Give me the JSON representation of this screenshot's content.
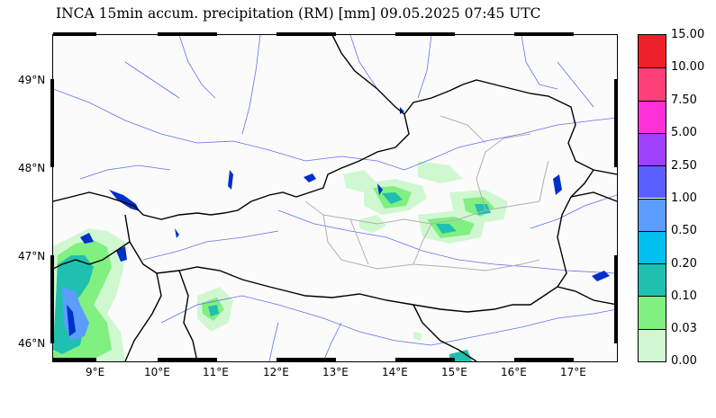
{
  "title": "INCA 15min accum. precipitation (RM) [mm] 09.05.2025 07:45 UTC",
  "lat_labels": [
    "49°N",
    "48°N",
    "47°N",
    "46°N"
  ],
  "lon_labels": [
    "9°E",
    "10°E",
    "11°E",
    "12°E",
    "13°E",
    "14°E",
    "15°E",
    "16°E",
    "17°E"
  ],
  "legend": {
    "labels": [
      "15.00",
      "10.00",
      "7.50",
      "5.00",
      "2.50",
      "1.00",
      "0.50",
      "0.20",
      "0.10",
      "0.03",
      "0.00"
    ],
    "colors": [
      "#f0202a",
      "#ff4078",
      "#ff30d8",
      "#a040ff",
      "#5a60ff",
      "#5b9cff",
      "#00c0f0",
      "#20c0b0",
      "#80f080",
      "#d0f8d0",
      "#ffffff"
    ]
  },
  "colors": {
    "border": "#000000",
    "region_border": "#b0b0b0",
    "river": "#6070f0",
    "lake": "#0030c8"
  }
}
